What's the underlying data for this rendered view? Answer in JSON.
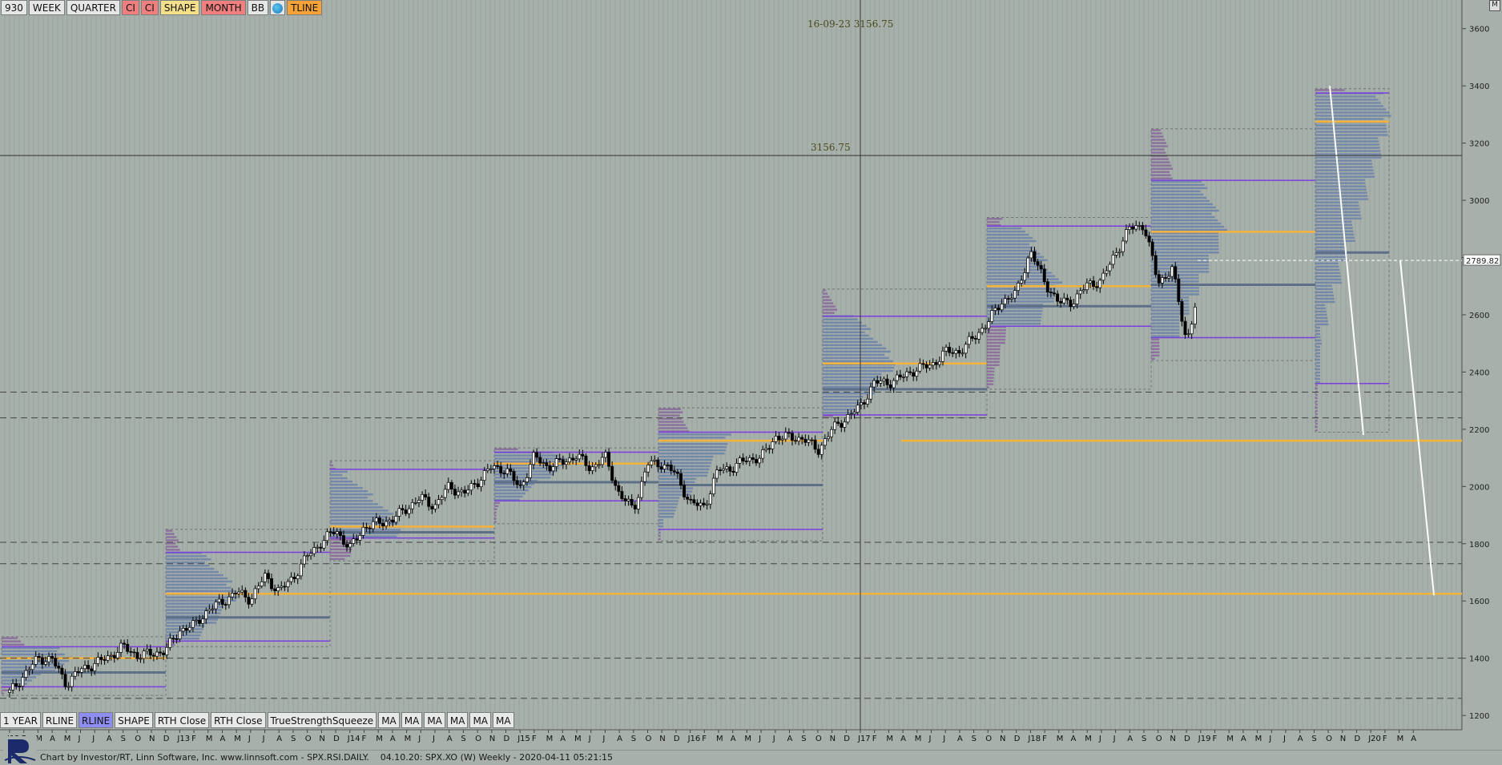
{
  "toolbar_top": {
    "buttons": [
      {
        "label": "930",
        "style": "plain"
      },
      {
        "label": "WEEK",
        "style": "plain"
      },
      {
        "label": "QUARTER",
        "style": "plain"
      },
      {
        "label": "CI",
        "style": "red"
      },
      {
        "label": "CI",
        "style": "red"
      },
      {
        "label": "SHAPE",
        "style": "yellow"
      },
      {
        "label": "MONTH",
        "style": "red"
      },
      {
        "label": "BB",
        "style": "plain"
      },
      {
        "label": "",
        "style": "icon",
        "icon": "globe-icon"
      },
      {
        "label": "TLINE",
        "style": "orange"
      }
    ]
  },
  "toolbar_bottom": {
    "buttons": [
      {
        "label": "1 YEAR",
        "active": false
      },
      {
        "label": "RLINE",
        "active": false
      },
      {
        "label": "RLINE",
        "active": true
      },
      {
        "label": "SHAPE",
        "active": false
      },
      {
        "label": "RTH Close",
        "active": false
      },
      {
        "label": "RTH Close",
        "active": false
      },
      {
        "label": "TrueStrengthSqueeze",
        "active": false
      },
      {
        "label": "MA",
        "active": false
      },
      {
        "label": "MA",
        "active": false
      },
      {
        "label": "MA",
        "active": false
      },
      {
        "label": "MA",
        "active": false
      },
      {
        "label": "MA",
        "active": false
      },
      {
        "label": "MA",
        "active": false
      }
    ]
  },
  "crosshair": {
    "date_price_label": "16-09-23  3156.75",
    "price_label": "3156.75",
    "price": 3156.75
  },
  "last_price_label": "2789.82",
  "corner_button": "M",
  "footer": {
    "text": "Chart by Investor/RT, Linn Software, Inc. www.linnsoft.com - SPX.RSI.DAILY.    04.10.20: SPX.XO (W) Weekly - 2020-04-11 05:21:15"
  },
  "colors": {
    "background": "#a7b0ab",
    "candle_up": "#ffffff",
    "candle_down": "#000000",
    "poc_line": "#f5b33c",
    "value_area_line": "#7b3fe0",
    "profile_blue": "#6f84a8",
    "profile_purple": "#8a6a9c"
  },
  "chart_data": {
    "type": "candlestick",
    "title": "",
    "ylim": [
      1150,
      3700
    ],
    "y_ticks": [
      1200,
      1400,
      1600,
      1800,
      2000,
      2200,
      2400,
      2600,
      2800,
      3000,
      3200,
      3400,
      3600
    ],
    "x_tick_labels": [
      "J12",
      "F",
      "M",
      "A",
      "M",
      "J",
      "J",
      "A",
      "S",
      "O",
      "N",
      "D",
      "J13",
      "F",
      "M",
      "A",
      "M",
      "J",
      "J",
      "A",
      "S",
      "O",
      "N",
      "D",
      "J14",
      "F",
      "M",
      "A",
      "M",
      "J",
      "J",
      "A",
      "S",
      "O",
      "N",
      "D",
      "J15",
      "F",
      "M",
      "A",
      "M",
      "J",
      "J",
      "A",
      "S",
      "O",
      "N",
      "D",
      "J16",
      "F",
      "M",
      "A",
      "M",
      "J",
      "J",
      "A",
      "S",
      "O",
      "N",
      "D",
      "J17",
      "F",
      "M",
      "A",
      "M",
      "J",
      "J",
      "A",
      "S",
      "O",
      "N",
      "D",
      "J18",
      "F",
      "M",
      "A",
      "M",
      "J",
      "J",
      "A",
      "S",
      "O",
      "N",
      "D",
      "J19",
      "F",
      "M",
      "A",
      "M",
      "J",
      "J",
      "A",
      "S",
      "O",
      "N",
      "D",
      "J20",
      "F",
      "M",
      "A"
    ],
    "price_path_monthly": [
      1280,
      1340,
      1400,
      1395,
      1310,
      1360,
      1380,
      1405,
      1440,
      1410,
      1415,
      1426,
      1498,
      1514,
      1569,
      1597,
      1631,
      1606,
      1686,
      1633,
      1682,
      1757,
      1806,
      1848,
      1783,
      1859,
      1872,
      1884,
      1924,
      1960,
      1931,
      2003,
      1972,
      2018,
      2068,
      2059,
      1995,
      2105,
      2068,
      2086,
      2107,
      2063,
      2104,
      1972,
      1920,
      2079,
      2080,
      2044,
      1940,
      1932,
      2060,
      2065,
      2097,
      2099,
      2174,
      2171,
      2168,
      2126,
      2199,
      2239,
      2279,
      2364,
      2363,
      2384,
      2412,
      2423,
      2470,
      2472,
      2519,
      2575,
      2648,
      2674,
      2824,
      2714,
      2641,
      2648,
      2705,
      2718,
      2816,
      2902,
      2914,
      2712,
      2760,
      2507,
      2704,
      2784,
      2834,
      2946,
      2752,
      2942,
      2980,
      2926,
      2977,
      3038,
      3141,
      3231,
      3226,
      2954,
      2585,
      2790
    ],
    "rline_levels": [
      {
        "price": 1260,
        "style": "dashed"
      },
      {
        "price": 1400,
        "style": "dashed"
      },
      {
        "price": 1730,
        "style": "dashed"
      },
      {
        "price": 1805,
        "style": "dashed"
      },
      {
        "price": 2240,
        "style": "dashed"
      },
      {
        "price": 2330,
        "style": "dashed"
      }
    ],
    "poc_levels": [
      1625,
      2160
    ],
    "annual_profiles": [
      {
        "year": "2012",
        "x0": 0.0,
        "x1": 0.5,
        "low": 1270,
        "high": 1475,
        "poc": 1400,
        "va_high": 1440,
        "va_low": 1300
      },
      {
        "year": "2013",
        "x0": 0.5,
        "x1": 1.0,
        "low": 1440,
        "high": 1850,
        "poc": 1625,
        "va_high": 1770,
        "va_low": 1460
      },
      {
        "year": "2014",
        "x0": 1.0,
        "x1": 1.5,
        "low": 1740,
        "high": 2090,
        "poc": 1860,
        "va_high": 2060,
        "va_low": 1820
      },
      {
        "year": "2015",
        "x0": 1.5,
        "x1": 2.0,
        "low": 1870,
        "high": 2135,
        "poc": 2080,
        "va_high": 2120,
        "va_low": 1950
      },
      {
        "year": "2016",
        "x0": 2.0,
        "x1": 2.5,
        "low": 1810,
        "high": 2275,
        "poc": 2160,
        "va_high": 2190,
        "va_low": 1850
      },
      {
        "year": "2017",
        "x0": 2.5,
        "x1": 3.0,
        "low": 2240,
        "high": 2690,
        "poc": 2430,
        "va_high": 2595,
        "va_low": 2250
      },
      {
        "year": "2018",
        "x0": 3.0,
        "x1": 3.5,
        "low": 2340,
        "high": 2940,
        "poc": 2700,
        "va_high": 2910,
        "va_low": 2560
      },
      {
        "year": "2019",
        "x0": 3.5,
        "x1": 4.0,
        "low": 2440,
        "high": 3250,
        "poc": 2890,
        "va_high": 3070,
        "va_low": 2520
      },
      {
        "year": "2020",
        "x0": 4.0,
        "x1": 4.3,
        "low": 2190,
        "high": 3390,
        "poc": 3275,
        "va_high": 3375,
        "va_low": 2360
      }
    ]
  }
}
